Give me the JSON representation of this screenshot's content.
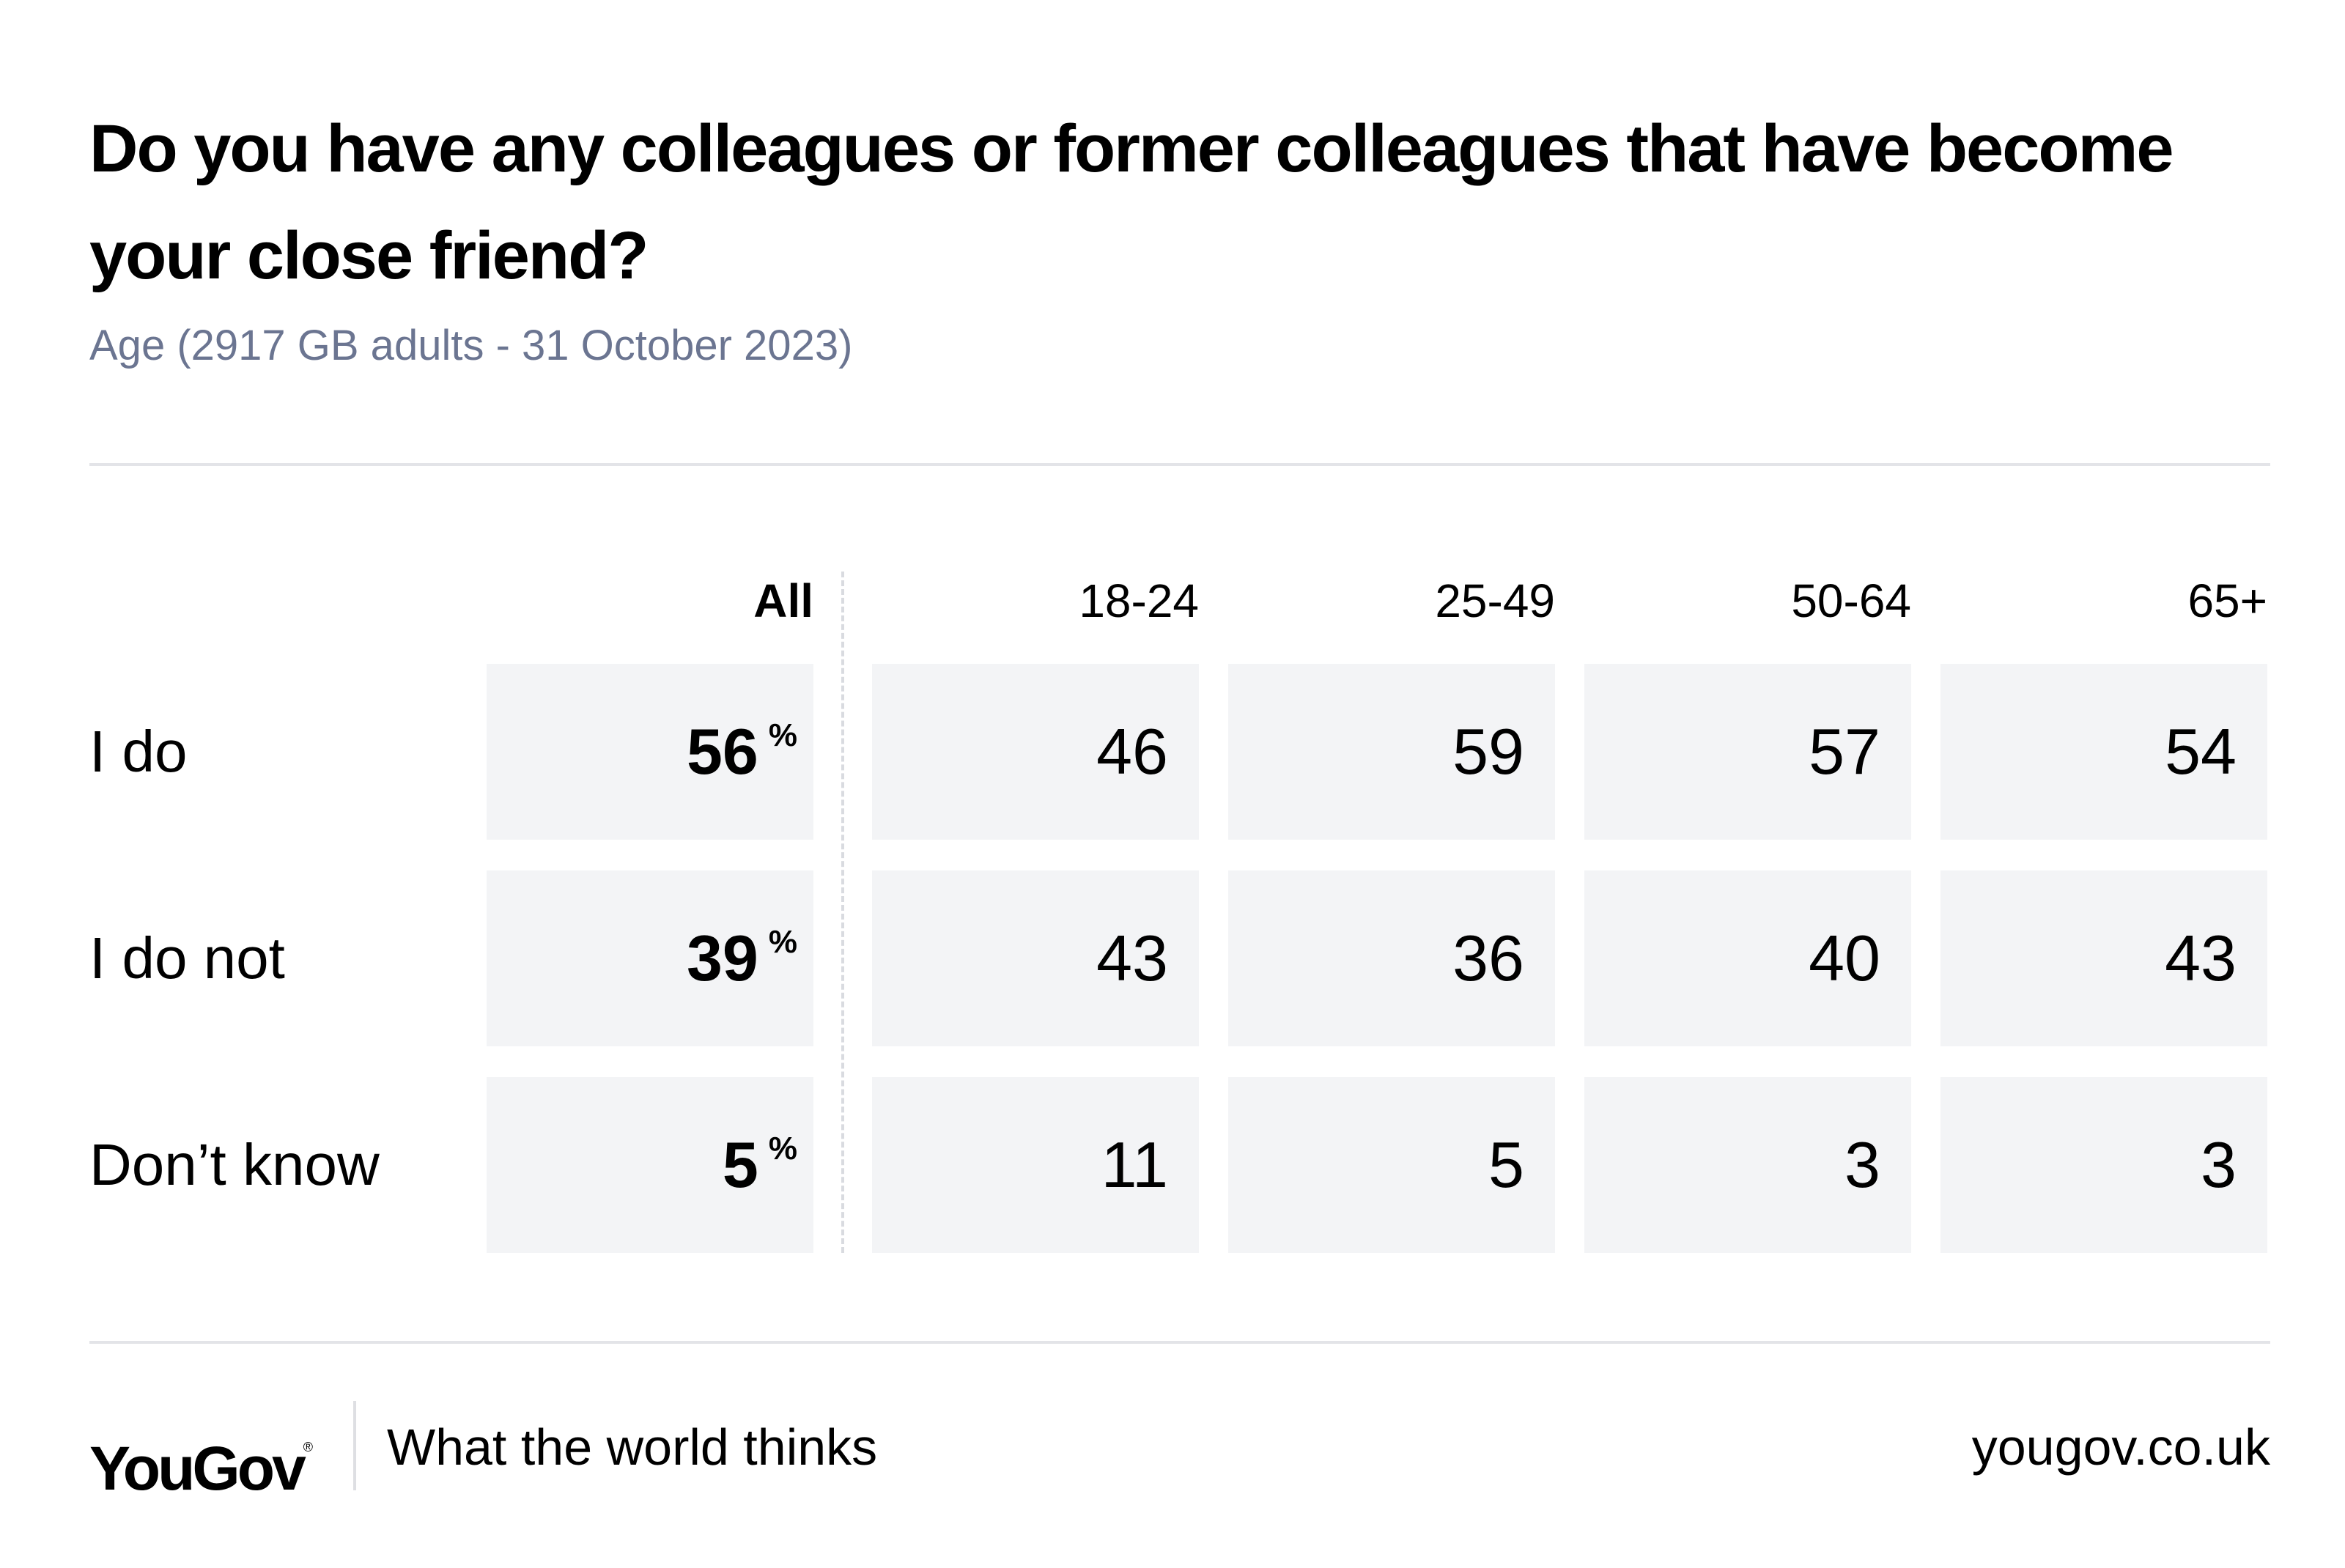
{
  "chart_data": {
    "type": "table",
    "title": "Do you have any colleagues or former colleagues that have become your close friend?",
    "subtitle": "Age (2917 GB adults - 31 October 2023)",
    "columns": [
      "All",
      "18-24",
      "25-49",
      "50-64",
      "65+"
    ],
    "rows": [
      {
        "label": "I do",
        "all": "56",
        "values": [
          "46",
          "59",
          "57",
          "54"
        ]
      },
      {
        "label": "I do not",
        "all": "39",
        "values": [
          "43",
          "36",
          "40",
          "43"
        ]
      },
      {
        "label": "Don’t know",
        "all": "5",
        "values": [
          "11",
          "5",
          "3",
          "3"
        ]
      }
    ],
    "unit": "%"
  },
  "footer": {
    "brand": "YouGov",
    "registered": "®",
    "tagline": "What the world thinks",
    "site": "yougov.co.uk"
  },
  "colors": {
    "cell_background": "#f3f4f6",
    "subtitle": "#6b7591",
    "rule": "#e3e4e8"
  }
}
